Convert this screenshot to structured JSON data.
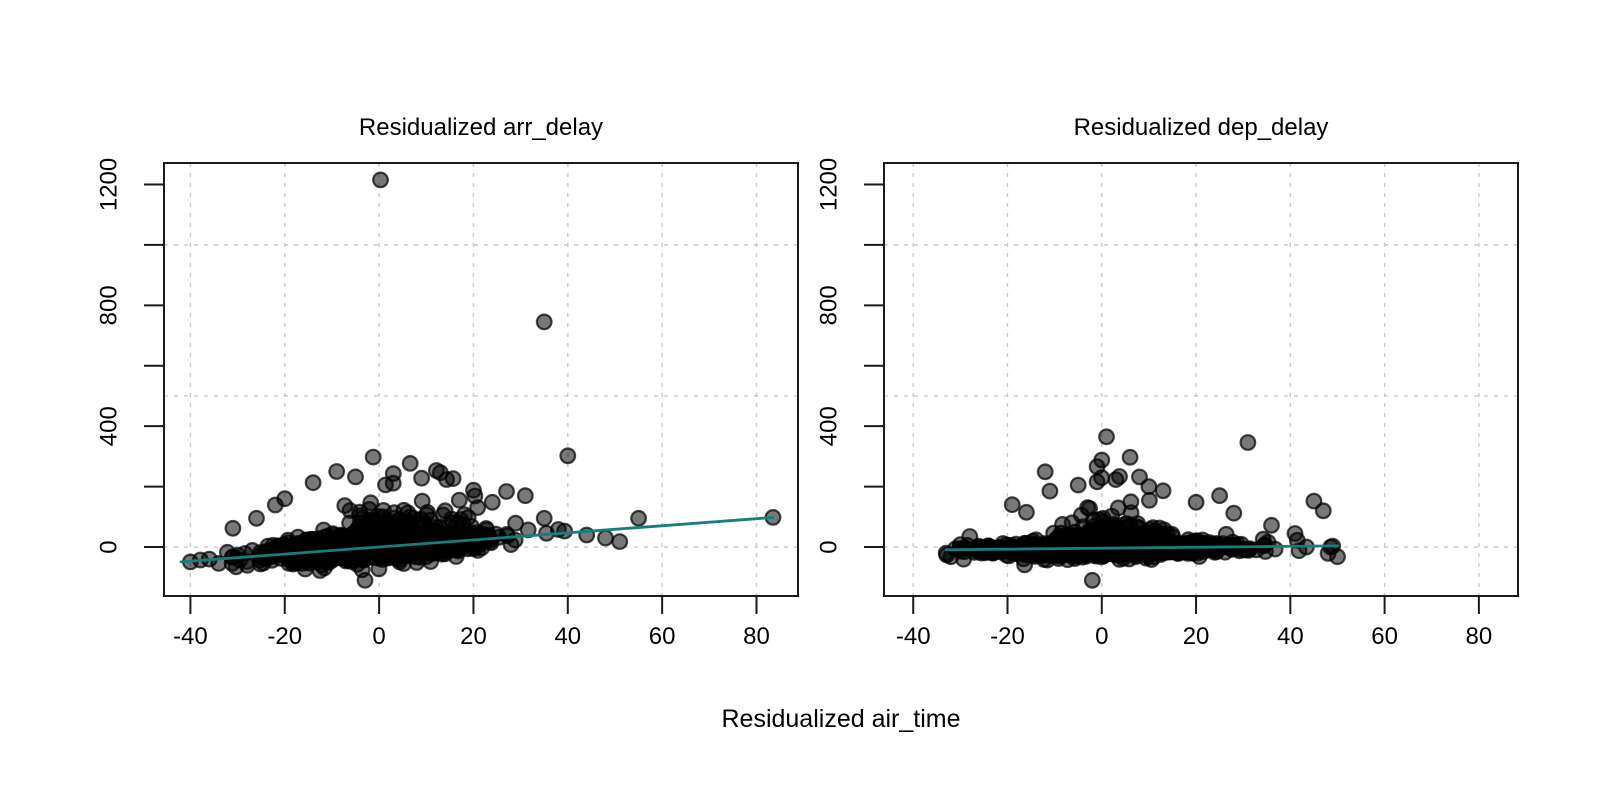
{
  "figure": {
    "shared_xlabel": "Residualized air_time",
    "background": "#ffffff"
  },
  "style": {
    "trend_color": "#157f7c",
    "point_color": "#000000",
    "point_fill_alpha": 0.53,
    "point_edge_alpha": 0.72,
    "grid_color": "#c9c9c9",
    "axis_color": "#1a1a1a",
    "text_color": "#000000"
  },
  "chart_data": [
    {
      "type": "scatter",
      "title": "Residualized arr_delay",
      "xlabel": "Residualized air_time",
      "ylabel": "",
      "xlim": [
        -45.6,
        88.8
      ],
      "ylim": [
        -162,
        1271
      ],
      "x_ticks": [
        -40,
        -20,
        0,
        20,
        40,
        60,
        80
      ],
      "x_tick_labels": [
        "-40",
        "-20",
        "0",
        "20",
        "40",
        "60",
        "80"
      ],
      "y_ticks": [
        0,
        200,
        400,
        600,
        800,
        1000,
        1200
      ],
      "y_tick_labels": [
        0,
        400,
        800,
        1200
      ],
      "grid_x": [
        -40,
        -20,
        0,
        20,
        40,
        60,
        80
      ],
      "grid_y": [
        0,
        500,
        1000
      ],
      "grid_on": true,
      "legend": null,
      "trend_line": {
        "x1": -42,
        "y1": -49,
        "x2": 83.5,
        "y2": 98,
        "color": "#157f7c"
      },
      "notable_points": [
        [
          0.3,
          1215
        ],
        [
          35,
          745
        ],
        [
          40,
          302
        ],
        [
          55,
          95
        ],
        [
          83.5,
          98
        ],
        [
          44,
          40
        ],
        [
          -40,
          -49
        ],
        [
          -36,
          -40
        ],
        [
          -34,
          -54
        ],
        [
          -31,
          62
        ],
        [
          -28,
          -48
        ],
        [
          -26,
          95
        ],
        [
          -22,
          139
        ],
        [
          -20,
          160
        ],
        [
          -14,
          213
        ],
        [
          -9,
          250
        ],
        [
          -5,
          232
        ],
        [
          -3,
          -110
        ],
        [
          3,
          243
        ],
        [
          9,
          228
        ],
        [
          13,
          246
        ],
        [
          17,
          155
        ],
        [
          20,
          188
        ],
        [
          24,
          148
        ],
        [
          27,
          184
        ],
        [
          31,
          170
        ],
        [
          35,
          95
        ],
        [
          38,
          58
        ],
        [
          48,
          30
        ],
        [
          51,
          18
        ]
      ],
      "cloud": {
        "description": "dense mass of overplotted semi-transparent points along trend",
        "n": 1700,
        "seed": 42,
        "x_mu": -1,
        "x_sd": 10.5,
        "x_range": [
          -41,
          43
        ],
        "p_wide": 0.015,
        "slope": 1.05,
        "intercept": -2,
        "sigma": 15,
        "p_pos_tail": 0.16,
        "tail_base": 12,
        "tail_amp": 45,
        "tail_x0": 6,
        "tail_w": 12,
        "p_neg_tail": 0.08,
        "neg_scale": 17,
        "y_clamp": [
          -78,
          300
        ]
      }
    },
    {
      "type": "scatter",
      "title": "Residualized dep_delay",
      "xlabel": "Residualized air_time",
      "ylabel": "",
      "xlim": [
        -46.2,
        88.3
      ],
      "ylim": [
        -162,
        1271
      ],
      "x_ticks": [
        -40,
        -20,
        0,
        20,
        40,
        60,
        80
      ],
      "x_tick_labels": [
        "-40",
        "-20",
        "0",
        "20",
        "40",
        "60",
        "80"
      ],
      "y_ticks": [
        0,
        200,
        400,
        600,
        800,
        1000,
        1200
      ],
      "y_tick_labels": [
        0,
        400,
        800,
        1200
      ],
      "grid_x": [
        -40,
        -20,
        0,
        20,
        40,
        60,
        80
      ],
      "grid_y": [
        0,
        500,
        1000
      ],
      "grid_on": true,
      "legend": null,
      "trend_line": {
        "x1": -33,
        "y1": -9,
        "x2": 50,
        "y2": 4,
        "color": "#157f7c"
      },
      "notable_points": [
        [
          1,
          365
        ],
        [
          31,
          346
        ],
        [
          6,
          297
        ],
        [
          0,
          288
        ],
        [
          -1,
          266
        ],
        [
          -12,
          249
        ],
        [
          -1,
          216
        ],
        [
          -5,
          205
        ],
        [
          10,
          200
        ],
        [
          8,
          232
        ],
        [
          -11,
          185
        ],
        [
          13,
          186
        ],
        [
          25,
          170
        ],
        [
          45,
          152
        ],
        [
          47,
          120
        ],
        [
          20,
          148
        ],
        [
          -19,
          140
        ],
        [
          -16,
          115
        ],
        [
          28,
          112
        ],
        [
          36,
          72
        ],
        [
          -2,
          -110
        ],
        [
          -33,
          -20
        ],
        [
          -32,
          -32
        ],
        [
          -30,
          8
        ],
        [
          -28,
          35
        ],
        [
          41,
          45
        ],
        [
          49,
          3
        ],
        [
          50,
          -32
        ]
      ],
      "cloud": {
        "description": "flat dense band on zero line with upward bump near x=0",
        "n": 1700,
        "seed": 1337,
        "x_mu": 1,
        "x_sd": 10.5,
        "x_range": [
          -33,
          50
        ],
        "p_wide": 0.02,
        "slope": 0.16,
        "intercept": -5,
        "sigma": 9,
        "p_pos_tail": 0.15,
        "tail_base": 8,
        "tail_amp": 42,
        "tail_x0": 3,
        "tail_w": 9,
        "p_neg_tail": 0.05,
        "neg_scale": 14,
        "y_clamp": [
          -60,
          250
        ]
      }
    }
  ]
}
